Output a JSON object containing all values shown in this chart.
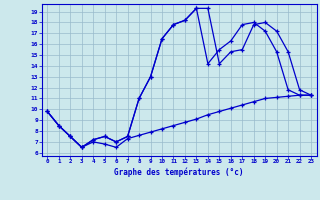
{
  "xlabel": "Graphe des températures (°c)",
  "xlim": [
    -0.5,
    23.5
  ],
  "ylim": [
    5.7,
    19.7
  ],
  "yticks": [
    6,
    7,
    8,
    9,
    10,
    11,
    12,
    13,
    14,
    15,
    16,
    17,
    18,
    19
  ],
  "xticks": [
    0,
    1,
    2,
    3,
    4,
    5,
    6,
    7,
    8,
    9,
    10,
    11,
    12,
    13,
    14,
    15,
    16,
    17,
    18,
    19,
    20,
    21,
    22,
    23
  ],
  "bg_color": "#cce8ec",
  "line_color": "#0000cc",
  "grid_color": "#99bbcc",
  "line1_x": [
    0,
    1,
    2,
    3,
    4,
    5,
    6,
    7,
    8,
    9,
    10,
    11,
    12,
    13,
    14,
    15,
    16,
    17,
    18,
    19,
    20,
    21,
    22,
    23
  ],
  "line1_y": [
    9.8,
    8.5,
    7.5,
    6.5,
    7.2,
    7.5,
    7.0,
    7.5,
    11.0,
    13.0,
    16.5,
    17.8,
    18.2,
    19.3,
    19.3,
    14.2,
    15.3,
    15.5,
    17.8,
    18.0,
    17.2,
    15.3,
    11.8,
    11.3
  ],
  "line2_x": [
    0,
    1,
    2,
    3,
    4,
    5,
    6,
    7,
    8,
    9,
    10,
    11,
    12,
    13,
    14,
    15,
    16,
    17,
    18,
    19,
    20,
    21,
    22,
    23
  ],
  "line2_y": [
    9.8,
    8.5,
    7.5,
    6.5,
    7.2,
    7.5,
    7.0,
    7.5,
    11.0,
    13.0,
    16.5,
    17.8,
    18.2,
    19.3,
    14.2,
    15.5,
    16.3,
    17.8,
    18.0,
    17.2,
    15.3,
    11.8,
    11.3,
    11.3
  ],
  "line3_x": [
    0,
    1,
    2,
    3,
    4,
    5,
    6,
    7,
    8,
    9,
    10,
    11,
    12,
    13,
    14,
    15,
    16,
    17,
    18,
    19,
    20,
    21,
    22,
    23
  ],
  "line3_y": [
    9.8,
    8.5,
    7.5,
    6.5,
    7.0,
    6.8,
    6.5,
    7.3,
    7.6,
    7.9,
    8.2,
    8.5,
    8.8,
    9.1,
    9.5,
    9.8,
    10.1,
    10.4,
    10.7,
    11.0,
    11.1,
    11.2,
    11.3,
    11.3
  ]
}
